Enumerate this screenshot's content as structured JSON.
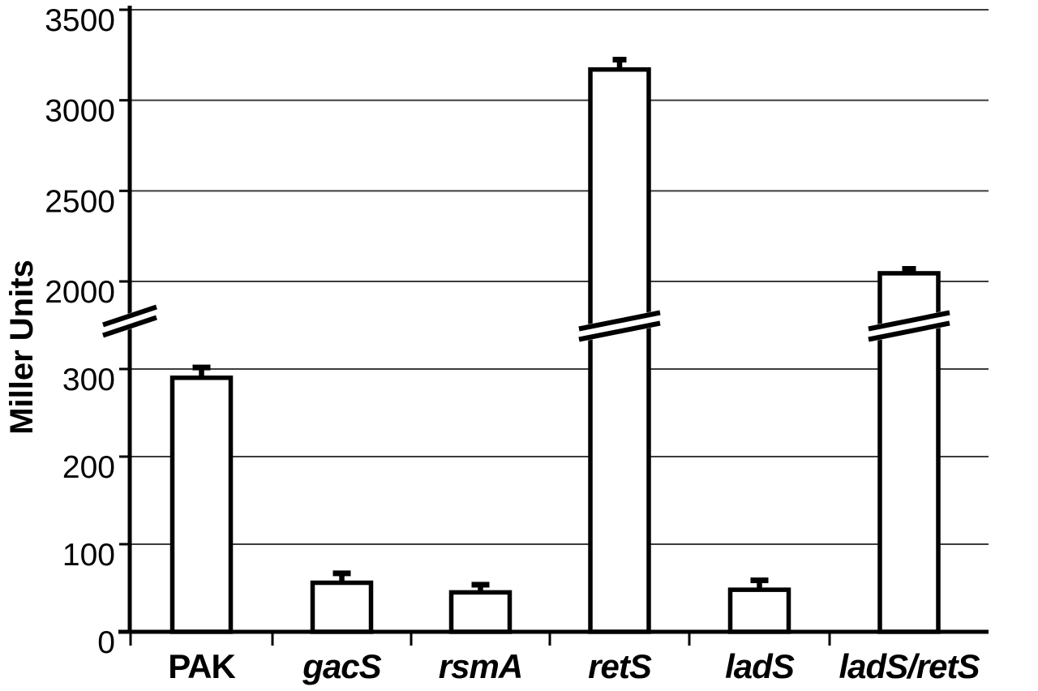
{
  "figure": {
    "description": "Black-and-white bar chart with a broken y-axis and error bars",
    "background_color": "#ffffff",
    "ink_color": "#000000",
    "gridline_color": "#3c3c3c",
    "bar_fill": "#ffffff",
    "bar_stroke": "#000000"
  },
  "chart_data": {
    "type": "bar",
    "title": "",
    "xlabel": "",
    "ylabel": "Miller Units",
    "categories": [
      "PAK",
      "gacS",
      "rsmA",
      "retS",
      "ladS",
      "ladS/retS"
    ],
    "categories_italic": [
      false,
      true,
      true,
      true,
      true,
      true
    ],
    "series": [
      {
        "name": "Miller Units",
        "values": [
          290,
          56,
          45,
          3170,
          48,
          2045
        ],
        "errors_plus": [
          15,
          14,
          12,
          70,
          14,
          40
        ]
      }
    ],
    "axis": {
      "broken": true,
      "lower_ticks": [
        0,
        100,
        200,
        300
      ],
      "upper_ticks": [
        2000,
        2500,
        3000,
        3500
      ],
      "break_between": [
        300,
        2000
      ],
      "bars_with_break_marks": [
        "retS",
        "ladS/retS"
      ]
    },
    "grid": true,
    "legend": false,
    "error_bars": "plus direction only, capped"
  }
}
